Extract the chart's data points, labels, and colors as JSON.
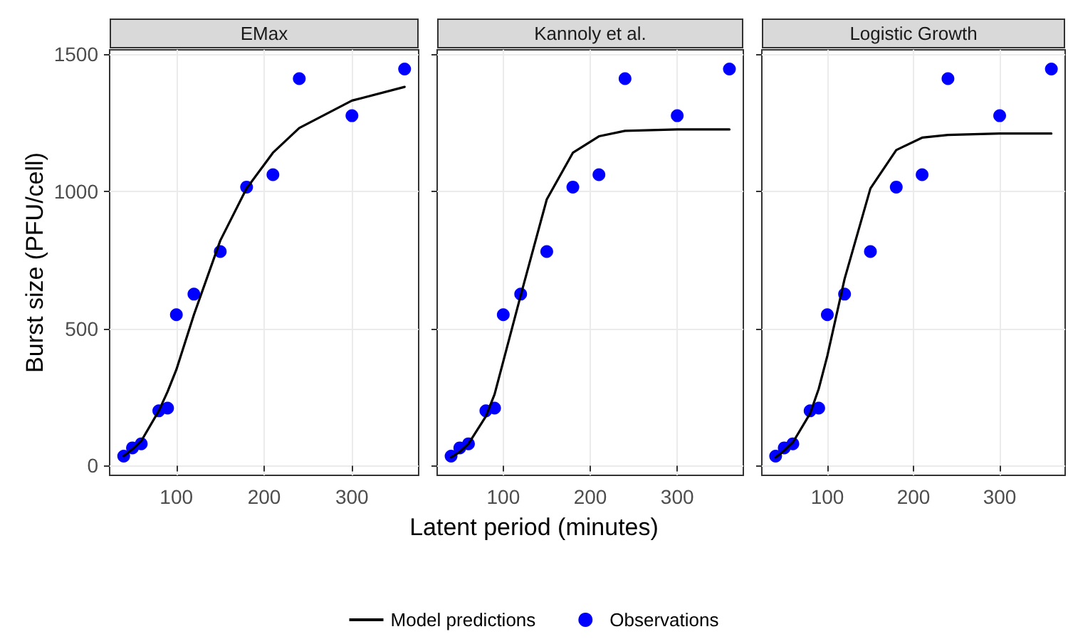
{
  "chart_data": [
    {
      "type": "line",
      "title": "EMax",
      "ylabel": "Burst size (PFU/cell)",
      "xlim": [
        24,
        376
      ],
      "xticks": [
        100,
        200,
        300
      ],
      "ylim": [
        -35,
        1515
      ],
      "yticks": [
        0,
        500,
        1000,
        1500
      ],
      "grid": true,
      "x": [
        40,
        50,
        60,
        80,
        90,
        100,
        120,
        150,
        180,
        210,
        240,
        300,
        360
      ],
      "series": [
        {
          "marker": "none",
          "line_style": "solid",
          "color": "#000000",
          "values": [
            35,
            60,
            90,
            200,
            270,
            350,
            550,
            820,
            1010,
            1140,
            1230,
            1330,
            1380
          ]
        },
        {
          "type": "scatter",
          "marker": "circle",
          "color": "#0000ff",
          "values": [
            35,
            65,
            80,
            200,
            210,
            550,
            625,
            780,
            1015,
            1060,
            1410,
            1275,
            1445
          ]
        }
      ]
    },
    {
      "type": "line",
      "title": "Kannoly et al.",
      "xlabel": "Latent period (minutes)",
      "legend": "bottom",
      "tick_labels": "x",
      "xlim": [
        24,
        376
      ],
      "xticks": [
        100,
        200,
        300
      ],
      "ylim": [
        -35,
        1515
      ],
      "yticks": [
        0,
        500,
        1000,
        1500
      ],
      "grid": true,
      "x": [
        40,
        50,
        60,
        80,
        90,
        100,
        120,
        150,
        180,
        210,
        240,
        300,
        360
      ],
      "series": [
        {
          "name": "Model predictions",
          "marker": "none",
          "line_style": "solid",
          "color": "#000000",
          "values": [
            30,
            50,
            80,
            180,
            260,
            380,
            620,
            970,
            1140,
            1200,
            1220,
            1225,
            1225
          ]
        },
        {
          "name": "Observations",
          "type": "scatter",
          "marker": "circle",
          "color": "#0000ff",
          "values": [
            35,
            65,
            80,
            200,
            210,
            550,
            625,
            780,
            1015,
            1060,
            1410,
            1275,
            1445
          ]
        }
      ]
    },
    {
      "type": "line",
      "title": "Logistic Growth",
      "tick_labels": "x",
      "xlim": [
        24,
        376
      ],
      "xticks": [
        100,
        200,
        300
      ],
      "ylim": [
        -35,
        1515
      ],
      "yticks": [
        0,
        500,
        1000,
        1500
      ],
      "grid": true,
      "x": [
        40,
        50,
        60,
        80,
        90,
        100,
        120,
        150,
        180,
        210,
        240,
        300,
        360
      ],
      "series": [
        {
          "marker": "none",
          "line_style": "solid",
          "color": "#000000",
          "values": [
            30,
            55,
            85,
            190,
            280,
            400,
            680,
            1010,
            1150,
            1195,
            1205,
            1210,
            1210
          ]
        },
        {
          "type": "scatter",
          "marker": "circle",
          "color": "#0000ff",
          "values": [
            35,
            65,
            80,
            200,
            210,
            550,
            625,
            780,
            1015,
            1060,
            1410,
            1275,
            1445
          ]
        }
      ]
    }
  ]
}
